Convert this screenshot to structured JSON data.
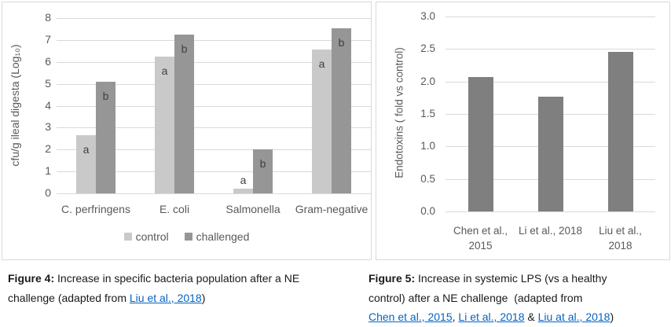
{
  "theme": {
    "background": "#ffffff",
    "panel_border": "#d9d9d9",
    "gridline": "#d9d9d9",
    "axis_text": "#595959",
    "annotation_text": "#404040",
    "link_color": "#0563c1",
    "caption_text": "#1a1a1a",
    "control_bar": "#c9c9c9",
    "challenged_bar": "#969696",
    "single_bar": "#7f7f7f"
  },
  "chart_data": [
    {
      "type": "bar",
      "title": "",
      "xlabel": "",
      "ylabel": "cfu/g ileal digesta (Log₁₀)",
      "categories": [
        "C. perfringens",
        "E. coli",
        "Salmonella",
        "Gram-negative"
      ],
      "series": [
        {
          "name": "control",
          "color": "#c9c9c9",
          "values": [
            2.65,
            6.25,
            0.2,
            6.55
          ]
        },
        {
          "name": "challenged",
          "color": "#969696",
          "values": [
            5.1,
            7.25,
            2.0,
            7.55
          ]
        }
      ],
      "ylim": [
        0,
        8
      ],
      "ytick_step": 1,
      "grid": true,
      "legend_position": "bottom",
      "annotations": [
        {
          "category": 0,
          "series": 0,
          "text": "a",
          "position": "inside"
        },
        {
          "category": 0,
          "series": 1,
          "text": "b",
          "position": "inside"
        },
        {
          "category": 1,
          "series": 0,
          "text": "a",
          "position": "inside"
        },
        {
          "category": 1,
          "series": 1,
          "text": "b",
          "position": "inside"
        },
        {
          "category": 2,
          "series": 0,
          "text": "a",
          "position": "above"
        },
        {
          "category": 2,
          "series": 1,
          "text": "b",
          "position": "inside"
        },
        {
          "category": 3,
          "series": 0,
          "text": "a",
          "position": "inside"
        },
        {
          "category": 3,
          "series": 1,
          "text": "b",
          "position": "inside"
        }
      ]
    },
    {
      "type": "bar",
      "title": "",
      "xlabel": "",
      "ylabel": "Endotoxins ( fold vs control)",
      "categories": [
        "Chen et al.,\n2015",
        "Li et al., 2018",
        "Liu et al.,\n2018"
      ],
      "series": [
        {
          "name": "",
          "color": "#7f7f7f",
          "values": [
            2.07,
            1.77,
            2.45
          ]
        }
      ],
      "ylim": [
        0,
        3
      ],
      "ytick_step": 0.5,
      "grid": true,
      "legend_position": "none",
      "annotations": []
    }
  ],
  "captions": {
    "figure4": {
      "segments": [
        {
          "text": "Figure 4:",
          "bold": true
        },
        {
          "text": " Increase in specific bacteria population after a NE"
        },
        {
          "break": true
        },
        {
          "text": "challenge (adapted from "
        },
        {
          "text": "Liu et al., 2018",
          "link": true
        },
        {
          "text": ")"
        }
      ]
    },
    "figure5": {
      "segments": [
        {
          "text": "Figure 5:",
          "bold": true
        },
        {
          "text": " Increase in systemic LPS (vs a healthy"
        },
        {
          "break": true
        },
        {
          "text": "control) after a NE challenge  (adapted from"
        },
        {
          "break": true
        },
        {
          "text": "Chen et al., 2015",
          "link": true
        },
        {
          "text": ", "
        },
        {
          "text": "Li et al., 2018",
          "link": true
        },
        {
          "text": " & "
        },
        {
          "text": "Liu at al., 2018",
          "link": true
        },
        {
          "text": ")"
        }
      ]
    }
  }
}
